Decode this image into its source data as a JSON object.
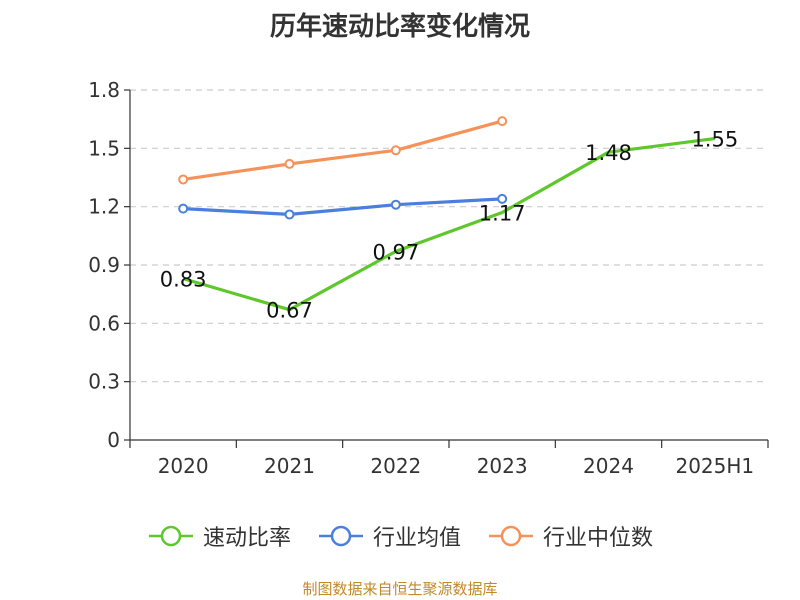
{
  "chart_data": {
    "type": "line",
    "title": "历年速动比率变化情况",
    "categories": [
      "2020",
      "2021",
      "2022",
      "2023",
      "2024",
      "2025H1"
    ],
    "y_ticks": [
      "0",
      "0.3",
      "0.6",
      "0.9",
      "1.2",
      "1.5",
      "1.8"
    ],
    "ylim": [
      0,
      1.8
    ],
    "grid": true,
    "legend_position": "bottom",
    "series": [
      {
        "name": "速动比率",
        "color": "#5ec72b",
        "values": [
          0.83,
          0.67,
          0.97,
          1.17,
          1.48,
          1.55
        ],
        "labels": [
          "0.83",
          "0.67",
          "0.97",
          "1.17",
          "1.48",
          "1.55"
        ],
        "show_markers": false,
        "show_labels": true
      },
      {
        "name": "行业均值",
        "color": "#4a7fdc",
        "values": [
          1.19,
          1.16,
          1.21,
          1.24,
          null,
          null
        ],
        "show_markers": true,
        "show_labels": false
      },
      {
        "name": "行业中位数",
        "color": "#f5925a",
        "values": [
          1.34,
          1.42,
          1.49,
          1.64,
          null,
          null
        ],
        "show_markers": true,
        "show_labels": false
      }
    ]
  },
  "source_note": "制图数据来自恒生聚源数据库"
}
